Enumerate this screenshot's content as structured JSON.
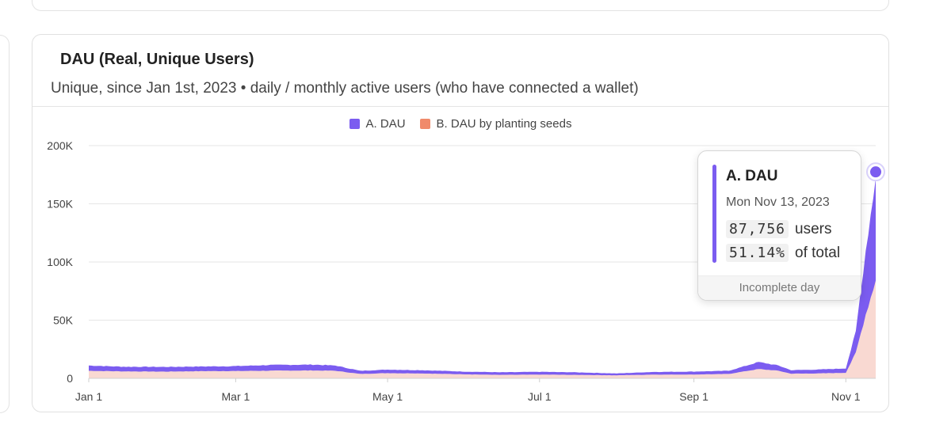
{
  "card": {
    "title": "DAU (Real, Unique Users)",
    "subtitle": "Unique, since Jan 1st, 2023 • daily / monthly active users (who have connected a wallet)"
  },
  "legend": [
    {
      "label": "A. DAU",
      "color": "#7B5CF0"
    },
    {
      "label": "B. DAU by planting seeds",
      "color": "#F08A6B"
    }
  ],
  "tooltip": {
    "series": "A. DAU",
    "date": "Mon Nov 13, 2023",
    "value": "87,756",
    "value_unit": "users",
    "share": "51.14%",
    "share_unit": "of total",
    "footer": "Incomplete day",
    "color": "#7B5CF0"
  },
  "chart_data": {
    "type": "area",
    "stacked": true,
    "title": "DAU (Real, Unique Users)",
    "xlabel": "",
    "ylabel": "",
    "ylim": [
      0,
      200000
    ],
    "y_ticks": [
      "0",
      "50K",
      "100K",
      "150K",
      "200K"
    ],
    "y_tick_values": [
      0,
      50000,
      100000,
      150000,
      200000
    ],
    "x_ticks": [
      "Jan 1",
      "Mar 1",
      "May 1",
      "Jul 1",
      "Sep 1",
      "Nov 1"
    ],
    "x_tick_dates": [
      "2023-01-01",
      "2023-03-01",
      "2023-05-01",
      "2023-07-01",
      "2023-09-01",
      "2023-11-01"
    ],
    "x_range": [
      "2023-01-01",
      "2023-11-13"
    ],
    "grid": true,
    "legend_position": "top-center",
    "series": [
      {
        "name": "B. DAU by planting seeds",
        "color": "#F08A6B",
        "points": [
          [
            "2023-01-01",
            6500
          ],
          [
            "2023-01-15",
            6000
          ],
          [
            "2023-02-01",
            5800
          ],
          [
            "2023-02-15",
            6200
          ],
          [
            "2023-03-01",
            6300
          ],
          [
            "2023-03-15",
            6600
          ],
          [
            "2023-04-01",
            6800
          ],
          [
            "2023-04-10",
            6500
          ],
          [
            "2023-04-20",
            3800
          ],
          [
            "2023-05-01",
            4500
          ],
          [
            "2023-05-15",
            4200
          ],
          [
            "2023-06-01",
            3500
          ],
          [
            "2023-06-15",
            3000
          ],
          [
            "2023-07-01",
            3200
          ],
          [
            "2023-07-15",
            3000
          ],
          [
            "2023-08-01",
            2600
          ],
          [
            "2023-08-15",
            3200
          ],
          [
            "2023-09-01",
            3300
          ],
          [
            "2023-09-15",
            3800
          ],
          [
            "2023-09-27",
            8000
          ],
          [
            "2023-10-05",
            6500
          ],
          [
            "2023-10-10",
            4000
          ],
          [
            "2023-10-20",
            4200
          ],
          [
            "2023-11-01",
            4800
          ],
          [
            "2023-11-05",
            22000
          ],
          [
            "2023-11-09",
            55000
          ],
          [
            "2023-11-13",
            84000
          ]
        ]
      },
      {
        "name": "A. DAU",
        "color": "#7B5CF0",
        "points": [
          [
            "2023-01-01",
            11000
          ],
          [
            "2023-01-15",
            10000
          ],
          [
            "2023-02-01",
            9800
          ],
          [
            "2023-02-15",
            10200
          ],
          [
            "2023-03-01",
            10500
          ],
          [
            "2023-03-15",
            11500
          ],
          [
            "2023-04-01",
            11800
          ],
          [
            "2023-04-10",
            11000
          ],
          [
            "2023-04-20",
            6500
          ],
          [
            "2023-05-01",
            7500
          ],
          [
            "2023-05-15",
            7000
          ],
          [
            "2023-06-01",
            5800
          ],
          [
            "2023-06-15",
            5200
          ],
          [
            "2023-07-01",
            5600
          ],
          [
            "2023-07-15",
            5200
          ],
          [
            "2023-08-01",
            4200
          ],
          [
            "2023-08-15",
            5500
          ],
          [
            "2023-09-01",
            5800
          ],
          [
            "2023-09-15",
            6500
          ],
          [
            "2023-09-27",
            14000
          ],
          [
            "2023-10-05",
            11000
          ],
          [
            "2023-10-10",
            7000
          ],
          [
            "2023-10-20",
            7500
          ],
          [
            "2023-11-01",
            8500
          ],
          [
            "2023-11-05",
            40000
          ],
          [
            "2023-11-09",
            110000
          ],
          [
            "2023-11-13",
            172000
          ]
        ]
      }
    ]
  }
}
